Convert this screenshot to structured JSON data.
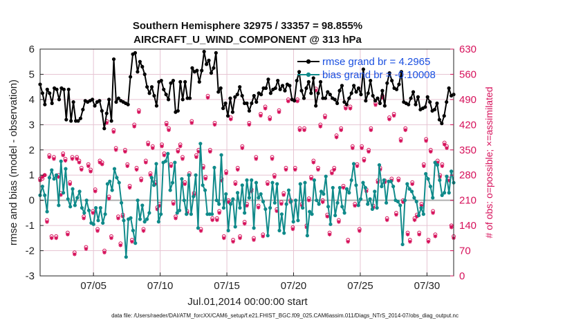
{
  "colors": {
    "rmse": "#000000",
    "bias": "#0f8a8a",
    "obs": "#d6105a",
    "zero_line": "#b0b0b0",
    "grid": "#e6c4d2",
    "legend_text": "#1a4fe0"
  },
  "chart_data": {
    "type": "line",
    "title_line1": "Southern Hemisphere 32975 / 33357 = 98.855%",
    "title_line2": "AIRCRAFT_U_WIND_COMPONENT @ 313 hPa",
    "xlabel": "Jul.01,2014 00:00:00 start",
    "ylabel": "rmse and bias (model - observation)",
    "ylabel_right": "# of obs: o=possible; ×=assimilated",
    "xlim": [
      1,
      32
    ],
    "ylim": [
      -3,
      6
    ],
    "ylim_right": [
      0,
      630
    ],
    "x_ticks": [
      5,
      10,
      15,
      20,
      25,
      30
    ],
    "x_tick_labels": [
      "07/05",
      "07/10",
      "07/15",
      "07/20",
      "07/25",
      "07/30"
    ],
    "y_ticks": [
      "-3",
      "-2",
      "-1",
      "0",
      "1",
      "2",
      "3",
      "4",
      "5",
      "6"
    ],
    "y_ticks_right": [
      "0",
      "70",
      "140",
      "210",
      "280",
      "350",
      "420",
      "490",
      "560",
      "630"
    ],
    "legend": [
      {
        "label": "rmse grand br = 4.2965",
        "series": "rmse"
      },
      {
        "label": "bias grand br = -0.10008",
        "series": "bias"
      }
    ],
    "footer": "data file: /Users/raeder/DAI/ATM_forcXX/CAM6_setup/f.e21.FHIST_BGC.f09_025.CAM6assim.011/Diags_NTrS_2014-07/obs_diag_output.nc",
    "series": [
      {
        "name": "rmse",
        "values": [
          4.6,
          4.25,
          3.8,
          4.4,
          4.25,
          3.85,
          4.45,
          4.4,
          4.0,
          4.45,
          4.4,
          3.2,
          4.4,
          3.15,
          3.9,
          3.15,
          3.15,
          3.25,
          3.6,
          3.95,
          3.9,
          3.95,
          4.0,
          3.75,
          3.9,
          3.95,
          3.55,
          2.85,
          3.45,
          4.0,
          3.15,
          5.6,
          3.9,
          4.05,
          3.95,
          3.9,
          3.85,
          3.8,
          4.9,
          5.8,
          5.85,
          5.1,
          5.5,
          5.3,
          5.0,
          4.5,
          4.25,
          4.5,
          4.15,
          3.75,
          4.7,
          4.75,
          4.4,
          4.2,
          4.0,
          4.65,
          4.75,
          3.5,
          3.55,
          4.7,
          4.0,
          4.7,
          4.05,
          4.05,
          5.25,
          5.1,
          5.15,
          4.7,
          5.15,
          5.9,
          5.4,
          5.55,
          5.05,
          5.25,
          5.85,
          4.3,
          4.45,
          3.65,
          3.85,
          3.35,
          4.05,
          3.5,
          4.1,
          4.2,
          4.5,
          4.15,
          3.85,
          3.85,
          3.55,
          3.85,
          4.15,
          3.9,
          4.25,
          4.2,
          4.45,
          4.45,
          4.8,
          4.25,
          4.4,
          4.45,
          4.75,
          4.4,
          4.55,
          4.35,
          4.6,
          4.55,
          4.0,
          3.95,
          4.75,
          5.1,
          4.35,
          4.05,
          4.45,
          4.7,
          4.25,
          4.85,
          3.75,
          4.25,
          4.7,
          4.05,
          4.05,
          4.3,
          4.2,
          4.05,
          4.0,
          3.85,
          4.35,
          4.55,
          3.9,
          3.8,
          4.05,
          4.25,
          4.55,
          4.3,
          4.45,
          4.2,
          5.2,
          3.95,
          4.25,
          4.75,
          4.15,
          3.95,
          4.05,
          3.85,
          4.35,
          3.75,
          4.65,
          5.05,
          4.75,
          4.45,
          4.4,
          4.6,
          5.1,
          3.9,
          3.85,
          3.8,
          4.05,
          4.3,
          3.8,
          4.1,
          3.6,
          3.65,
          3.7,
          4.1,
          3.9,
          3.55,
          3.6,
          3.85,
          3.2,
          3.05,
          3.35,
          3.9,
          4.45,
          4.15,
          4.2
        ],
        "marker": "filled-circle"
      },
      {
        "name": "bias",
        "values": [
          0.2,
          0.55,
          0.2,
          -0.45,
          0.9,
          1.2,
          0.85,
          1.0,
          -0.2,
          1.55,
          0.3,
          1.25,
          0.05,
          -0.25,
          0.45,
          -0.2,
          0.1,
          0.35,
          -0.3,
          -0.5,
          0.0,
          -0.4,
          -0.9,
          -0.95,
          -0.3,
          -0.8,
          -0.3,
          -0.9,
          -0.55,
          0.65,
          0.75,
          0.4,
          1.25,
          0.9,
          0.7,
          -0.1,
          -0.8,
          -2.25,
          -0.75,
          -0.7,
          -1.2,
          -1.7,
          0.0,
          -0.75,
          -0.2,
          -0.85,
          -0.75,
          -0.5,
          0.9,
          0.6,
          1.45,
          -0.85,
          -0.55,
          1.5,
          1.55,
          1.85,
          0.4,
          0.7,
          1.5,
          -0.5,
          -0.4,
          0.85,
          0.0,
          -0.55,
          1.0,
          -0.55,
          0.15,
          1.0,
          -1.1,
          2.25,
          0.6,
          0.4,
          -0.55,
          -0.55,
          -0.55,
          1.3,
          0.0,
          -0.15,
          1.8,
          -0.3,
          0.25,
          -1.2,
          -0.15,
          0.05,
          -1.05,
          0.3,
          -0.3,
          0.6,
          -0.5,
          0.8,
          0.1,
          0.8,
          -1.1,
          0.7,
          0.1,
          0.25,
          -0.05,
          -0.35,
          -1.4,
          -0.3,
          0.7,
          -0.1,
          0.65,
          -1.2,
          -0.55,
          -1.3,
          -0.15,
          0.4,
          -0.05,
          -0.85,
          0.0,
          -0.8,
          0.65,
          -0.3,
          0.7,
          -1.4,
          -0.45,
          -0.55,
          0.8,
          0.0,
          -0.15,
          0.35,
          0.25,
          0.95,
          -0.25,
          -0.95,
          0.5,
          -0.6,
          -0.1,
          0.5,
          -0.25,
          -0.5,
          0.45,
          0.3,
          0.8,
          1.45,
          0.6,
          -0.2,
          0.05,
          0.7,
          0.5,
          -0.15,
          0.05,
          -0.35,
          0.35,
          -0.3,
          1.4,
          0.55,
          0.8,
          -0.1,
          0.75,
          0.75,
          0.55,
          0.0,
          -0.05,
          -0.2,
          -1.75,
          0.0,
          0.65,
          0.45,
          0.35,
          0.1,
          -0.05,
          -0.6,
          -0.3,
          -0.55,
          1.05,
          0.85,
          0.55,
          0.1,
          1.5,
          1.4,
          0.8,
          0.2,
          0.3,
          0.95,
          0.3,
          1.15,
          0.7
        ],
        "marker": "filled-circle"
      }
    ],
    "obs_possible": [
      270,
      270,
      280,
      155,
      335,
      110,
      330,
      110,
      280,
      230,
      340,
      325,
      120,
      260,
      330,
      65,
      330,
      320,
      300,
      165,
      80,
      310,
      295,
      180,
      240,
      130,
      320,
      315,
      70,
      430,
      220,
      110,
      405,
      355,
      165,
      90,
      170,
      350,
      310,
      250,
      100,
      420,
      300,
      460,
      270,
      130,
      320,
      370,
      285,
      360,
      260,
      190,
      200,
      365,
      340,
      425,
      410,
      310,
      205,
      165,
      350,
      365,
      330,
      260,
      180,
      285,
      430,
      230,
      335,
      350,
      130,
      305,
      275,
      500,
      350,
      160,
      425,
      160,
      180,
      270,
      110,
      290,
      210,
      440,
      100,
      260,
      300,
      110,
      360,
      150,
      200,
      425,
      240,
      105,
      330,
      195,
      450,
      115,
      470,
      260,
      440,
      330,
      280,
      185,
      460,
      205,
      230,
      300,
      490,
      210,
      135,
      300,
      490,
      410,
      200,
      410,
      140,
      215,
      275,
      320,
      520,
      300,
      420,
      210,
      445,
      170,
      120,
      290,
      300,
      390,
      155,
      410,
      250,
      470,
      100,
      470,
      360,
      200,
      310,
      130,
      360,
      325,
      240,
      350,
      410,
      195,
      480,
      265,
      300,
      500,
      265,
      160,
      440,
      270,
      450,
      175,
      270,
      380,
      210,
      410,
      120,
      100,
      260,
      160,
      170,
      120,
      200,
      310,
      380,
      100,
      350,
      180,
      115,
      320,
      280,
      310,
      370,
      360,
      270,
      140,
      110
    ],
    "obs_assimilated": [
      265,
      275,
      280,
      150,
      330,
      105,
      325,
      105,
      275,
      225,
      335,
      320,
      115,
      255,
      325,
      60,
      325,
      315,
      295,
      160,
      75,
      305,
      290,
      175,
      235,
      125,
      315,
      310,
      65,
      425,
      215,
      105,
      400,
      350,
      160,
      85,
      165,
      345,
      305,
      245,
      95,
      415,
      295,
      455,
      265,
      125,
      315,
      365,
      280,
      355,
      255,
      185,
      195,
      360,
      335,
      420,
      405,
      305,
      200,
      160,
      345,
      360,
      325,
      255,
      175,
      280,
      425,
      225,
      330,
      345,
      125,
      300,
      270,
      495,
      345,
      155,
      420,
      155,
      175,
      265,
      105,
      285,
      205,
      435,
      95,
      255,
      295,
      105,
      355,
      145,
      195,
      420,
      235,
      100,
      325,
      190,
      445,
      110,
      465,
      255,
      435,
      325,
      275,
      180,
      455,
      200,
      225,
      295,
      485,
      205,
      130,
      295,
      485,
      405,
      195,
      405,
      135,
      210,
      270,
      315,
      515,
      295,
      415,
      205,
      440,
      165,
      115,
      285,
      295,
      385,
      150,
      405,
      245,
      465,
      95,
      465,
      355,
      195,
      305,
      125,
      355,
      320,
      235,
      345,
      405,
      190,
      475,
      260,
      295,
      495,
      260,
      155,
      435,
      265,
      445,
      170,
      265,
      375,
      205,
      405,
      115,
      95,
      255,
      155,
      165,
      115,
      195,
      305,
      375,
      95,
      345,
      175,
      110,
      315,
      275,
      305,
      365,
      355,
      265,
      135,
      105
    ]
  }
}
